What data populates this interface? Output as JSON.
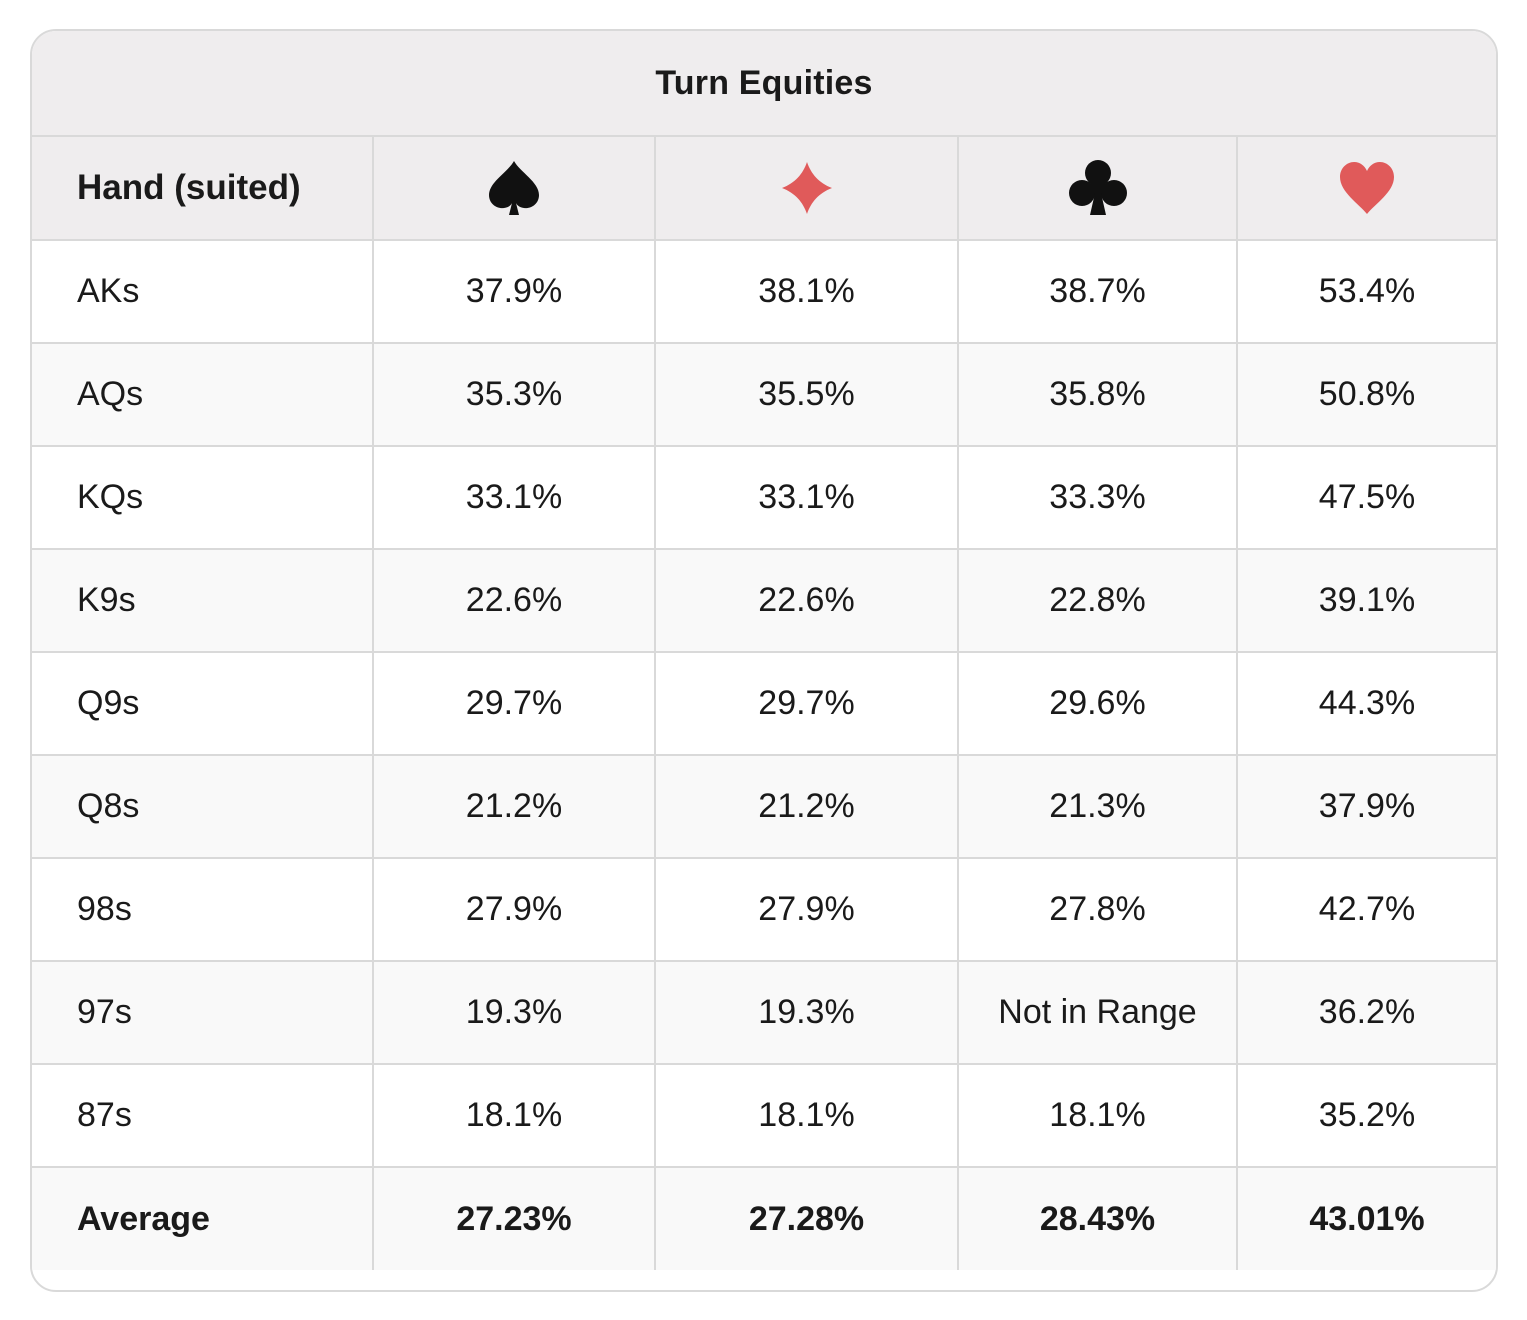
{
  "table": {
    "title": "Turn Equities",
    "hand_header": "Hand (suited)",
    "suits": [
      {
        "icon": "spade-icon",
        "color": "#111111"
      },
      {
        "icon": "diamond-icon",
        "color": "#e05a5a"
      },
      {
        "icon": "club-icon",
        "color": "#111111"
      },
      {
        "icon": "heart-icon",
        "color": "#e05a5a"
      }
    ],
    "rows": [
      {
        "hand": "AKs",
        "values": [
          "37.9%",
          "38.1%",
          "38.7%",
          "53.4%"
        ]
      },
      {
        "hand": "AQs",
        "values": [
          "35.3%",
          "35.5%",
          "35.8%",
          "50.8%"
        ]
      },
      {
        "hand": "KQs",
        "values": [
          "33.1%",
          "33.1%",
          "33.3%",
          "47.5%"
        ]
      },
      {
        "hand": "K9s",
        "values": [
          "22.6%",
          "22.6%",
          "22.8%",
          "39.1%"
        ]
      },
      {
        "hand": "Q9s",
        "values": [
          "29.7%",
          "29.7%",
          "29.6%",
          "44.3%"
        ]
      },
      {
        "hand": "Q8s",
        "values": [
          "21.2%",
          "21.2%",
          "21.3%",
          "37.9%"
        ]
      },
      {
        "hand": "98s",
        "values": [
          "27.9%",
          "27.9%",
          "27.8%",
          "42.7%"
        ]
      },
      {
        "hand": "97s",
        "values": [
          "19.3%",
          "19.3%",
          "Not in Range",
          "36.2%"
        ]
      },
      {
        "hand": "87s",
        "values": [
          "18.1%",
          "18.1%",
          "18.1%",
          "35.2%"
        ]
      }
    ],
    "average": {
      "label": "Average",
      "values": [
        "27.23%",
        "27.28%",
        "28.43%",
        "43.01%"
      ]
    }
  }
}
